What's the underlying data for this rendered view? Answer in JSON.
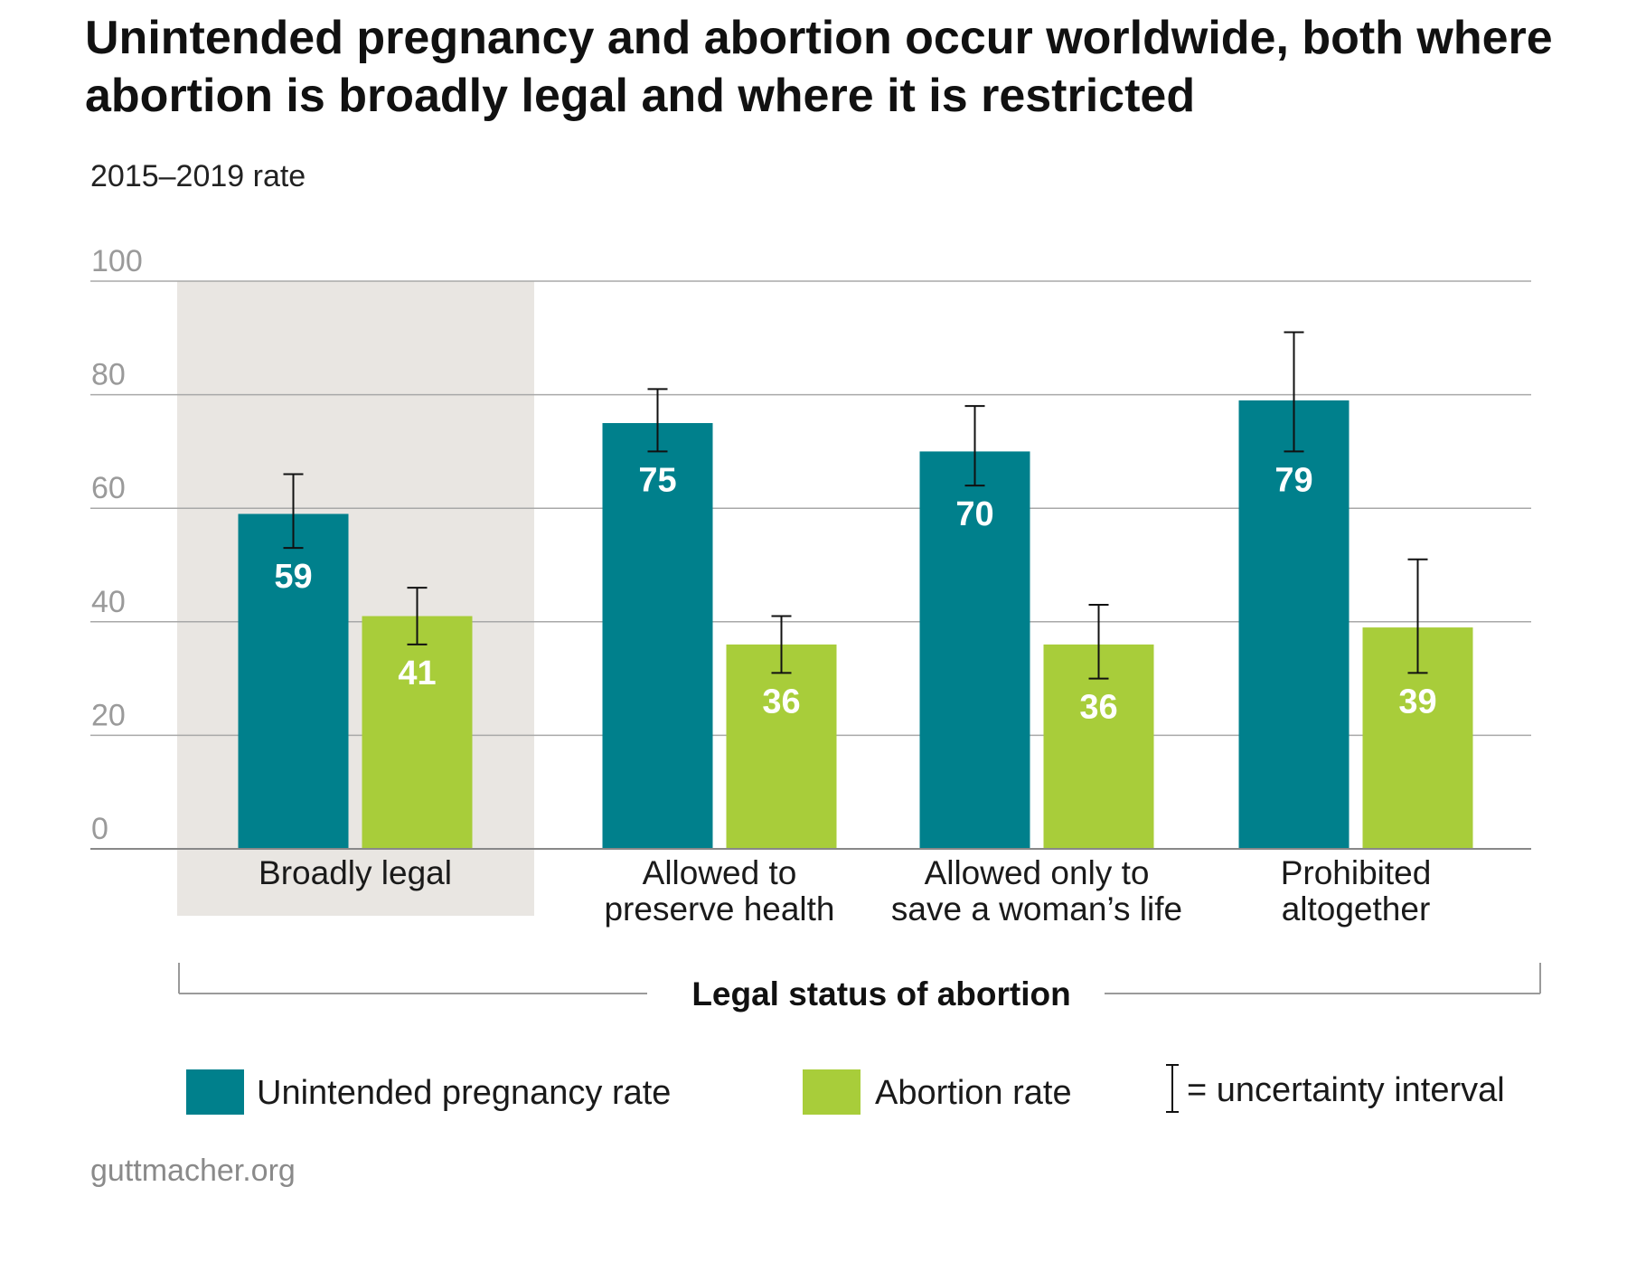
{
  "title": "Unintended pregnancy and abortion occur worldwide, both where abortion is broadly legal and where it is restricted",
  "subtitle": "2015–2019 rate",
  "source": "guttmacher.org",
  "colors": {
    "unintended": "#00808c",
    "abortion": "#a8cd3a",
    "highlight": "#e9e6e2",
    "grid": "#a8a8a8",
    "baseline": "#888888"
  },
  "chart_data": {
    "type": "bar",
    "ylim": [
      0,
      100
    ],
    "yticks": [
      "0",
      "20",
      "40",
      "60",
      "80",
      "100"
    ],
    "grid": true,
    "categories": [
      [
        "Broadly legal"
      ],
      [
        "Allowed to",
        "preserve health"
      ],
      [
        "Allowed only to",
        "save a woman’s life"
      ],
      [
        "Prohibited",
        "altogether"
      ]
    ],
    "highlighted_category": "Broadly legal",
    "xlabel": "Legal status of abortion",
    "series": [
      {
        "name": "Unintended pregnancy rate",
        "values": [
          59,
          75,
          70,
          79
        ],
        "value_labels": [
          "59",
          "75",
          "70",
          "79"
        ],
        "uncertainty": [
          [
            53,
            66
          ],
          [
            70,
            81
          ],
          [
            64,
            78
          ],
          [
            70,
            91
          ]
        ]
      },
      {
        "name": "Abortion rate",
        "values": [
          41,
          36,
          36,
          39
        ],
        "value_labels": [
          "41",
          "36",
          "36",
          "39"
        ],
        "uncertainty": [
          [
            36,
            46
          ],
          [
            31,
            41
          ],
          [
            30,
            43
          ],
          [
            31,
            51
          ]
        ]
      }
    ],
    "legend": {
      "placement": "bottom",
      "items": [
        "Unintended pregnancy rate",
        "Abortion rate"
      ],
      "uncertainty_note": "= uncertainty interval"
    }
  }
}
